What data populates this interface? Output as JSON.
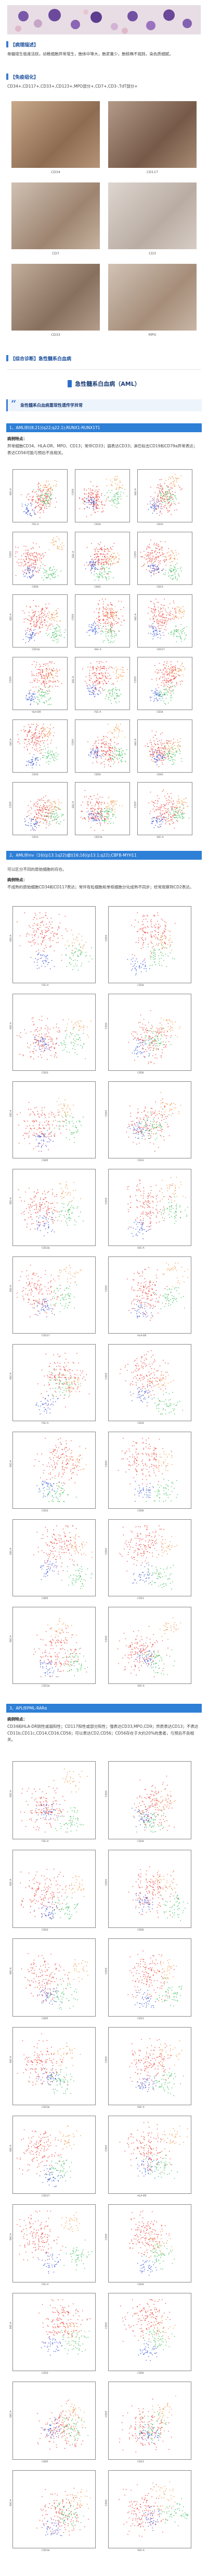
{
  "morph": {
    "header": "【病理描述】",
    "desc": "骨髓增生极度活跃，幼稚细胞异常增生，胞体中等大，胞浆量少，胞核椭不规则，染色质细腻。"
  },
  "immuno": {
    "header": "【免疫组化】",
    "desc": "CD34+,CD117+,CD33+,CD123+,MPO部分+,CD7+,CD3-,TdT部分+",
    "stains": [
      "CD34",
      "CD117",
      "CD7",
      "CD3",
      "CD33",
      "MPO"
    ]
  },
  "diag": {
    "header": "【综合诊断】急性髓系白血病"
  },
  "main_title": "急性髓系白血病（AML）",
  "quote": "急性髓系白血病重现性遗传学异常",
  "sec1": {
    "band": "1、AML伴t(8;21)(q22;q22.1);RUNX1-RUNX1T1",
    "label": "病例特点：",
    "text": "异常细胞CD34、HLA-DR、MPO、CD13；常伴CD33；弱表达CD33；淋巴标志CD19和CD79a异常表达；表达CD56可能与预后不良相关。"
  },
  "sec2": {
    "band": "2、AML伴inv（16)(p13.1q22)或t(16;16)(p13.1;q22);CBFB-MYH11",
    "intro": "可以区分不同的原始细胞的存在。",
    "label": "病例特点：",
    "text": "不成熟的原始细胞CD34和CD117表达；常伴有粒细胞和单核细胞分化成熟不同步；经常观察到CD2表达。"
  },
  "sec3": {
    "band": "3、APL伴PML-RARα",
    "label": "病例特点：",
    "text": "CD34和HLA-DR阴性或弱阳性；CD117阳性或部分阳性；强表达CD33,MPO,CD9；异质表达CD13；不表达CD11b,CD11c,CD14,CD16,CD56；可以表达CD2,CD56；CD56存在于大约20%的患者，与预后不良相关。"
  },
  "plot_axes": {
    "fsc": "FSC-A",
    "ssc": "SSC-A",
    "cd45": "CD45",
    "cd34": "CD34",
    "cd117": "CD117",
    "cd13": "CD13",
    "cd33": "CD33",
    "hla": "HLA-DR",
    "cd11b": "CD11b",
    "cd56": "CD56"
  },
  "colors": {
    "accent": "#2e7fd6",
    "heading": "#1d3f78",
    "blast": "#e8342a",
    "lymph": "#2f4cd6",
    "mono": "#29b94a",
    "gran": "#f08a2b"
  }
}
